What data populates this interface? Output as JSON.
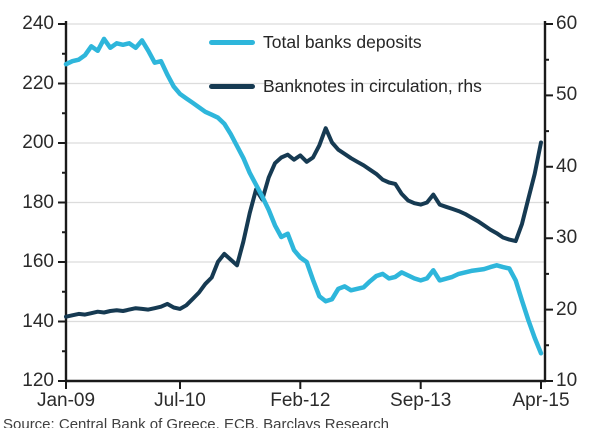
{
  "source_text": "Source: Central Bank of Greece, ECB, Barclays Research",
  "legend": {
    "items": [
      {
        "label": "Total banks deposits",
        "color": "#2eb6db"
      },
      {
        "label": "Banknotes in circulation, rhs",
        "color": "#163a52"
      }
    ]
  },
  "colors": {
    "background": "#ffffff",
    "gridline": "#dcdcdc",
    "axis": "#1a1a1a",
    "deposits_line": "#2eb6db",
    "banknotes_line": "#163a52"
  },
  "chart_data": {
    "type": "line",
    "title": "",
    "frequency": "monthly",
    "x_start": "Jan-09",
    "x_end": "Apr-15",
    "legend_position": "top-center",
    "grid": "horizontal",
    "x_axis": {
      "tick_labels": [
        "Jan-09",
        "Jul-10",
        "Feb-12",
        "Sep-13",
        "Apr-15"
      ],
      "tick_positions_months": [
        0,
        18,
        37,
        56,
        75
      ]
    },
    "left_axis": {
      "min": 120,
      "max": 240,
      "step": 20,
      "minor_step": 10,
      "tick_labels": [
        "240",
        "220",
        "200",
        "180",
        "160",
        "140",
        "120"
      ]
    },
    "right_axis": {
      "min": 10,
      "max": 60,
      "step": 10,
      "minor_step": 5,
      "tick_labels": [
        "60",
        "50",
        "40",
        "30",
        "20",
        "10"
      ]
    },
    "series": [
      {
        "name": "Total banks deposits",
        "axis": "left",
        "color": "#2eb6db",
        "values": [
          226.5,
          227.5,
          228.0,
          229.5,
          232.5,
          231.0,
          235.0,
          232.0,
          233.5,
          233.0,
          233.5,
          232.0,
          234.5,
          231.0,
          227.0,
          227.5,
          223.0,
          219.0,
          216.5,
          215.0,
          213.5,
          212.0,
          210.5,
          209.5,
          208.5,
          206.5,
          203.0,
          199.0,
          195.0,
          190.0,
          186.0,
          182.0,
          177.5,
          172.3,
          168.4,
          169.5,
          164.0,
          161.5,
          160.0,
          154.0,
          148.5,
          146.8,
          147.5,
          151.0,
          151.8,
          150.5,
          151.0,
          151.5,
          153.5,
          155.3,
          156.0,
          154.5,
          155.0,
          156.5,
          155.5,
          154.5,
          153.8,
          154.5,
          157.2,
          153.8,
          154.4,
          155.0,
          156.0,
          156.5,
          157.0,
          157.3,
          157.6,
          158.3,
          158.9,
          158.3,
          157.8,
          153.8,
          147.0,
          140.5,
          134.5,
          129.3
        ]
      },
      {
        "name": "Banknotes in circulation, rhs",
        "axis": "right",
        "color": "#163a52",
        "values": [
          19.0,
          19.2,
          19.4,
          19.3,
          19.5,
          19.7,
          19.6,
          19.8,
          19.9,
          19.8,
          20.0,
          20.2,
          20.1,
          20.0,
          20.2,
          20.4,
          20.8,
          20.3,
          20.1,
          20.6,
          21.5,
          22.4,
          23.6,
          24.5,
          26.7,
          27.8,
          27.0,
          26.2,
          29.5,
          33.5,
          36.8,
          35.4,
          38.5,
          40.5,
          41.3,
          41.7,
          41.0,
          41.6,
          40.7,
          41.3,
          43.0,
          45.4,
          43.4,
          42.4,
          41.8,
          41.2,
          40.7,
          40.2,
          39.6,
          39.0,
          38.2,
          37.8,
          37.6,
          36.2,
          35.3,
          34.9,
          34.7,
          35.0,
          36.1,
          34.7,
          34.4,
          34.1,
          33.8,
          33.4,
          32.9,
          32.4,
          31.8,
          31.2,
          30.7,
          30.1,
          29.8,
          29.6,
          32.0,
          35.5,
          39.0,
          43.4
        ]
      }
    ]
  }
}
